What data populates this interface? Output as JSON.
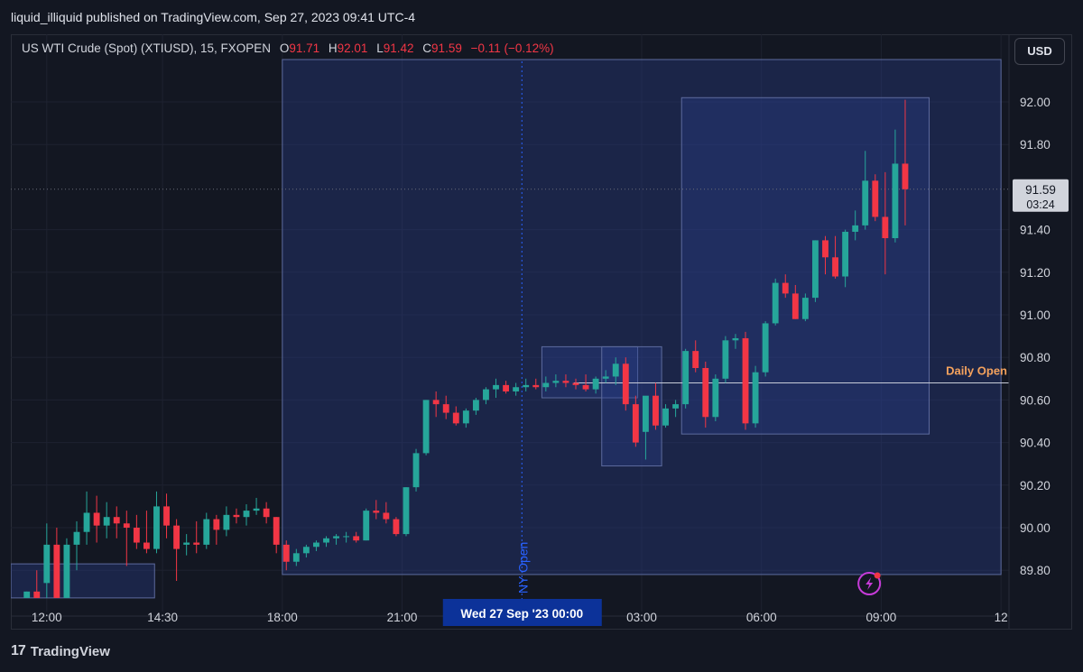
{
  "publisher": "liquid_illiquid published on TradingView.com, Sep 27, 2023 09:41 UTC-4",
  "legend": {
    "symbol": "US WTI Crude (Spot) (XTIUSD), 15, FXOPEN",
    "open_key": "O",
    "open": "91.71",
    "high_key": "H",
    "high": "92.01",
    "low_key": "L",
    "low": "91.42",
    "close_key": "C",
    "close": "91.59",
    "change": "−0.11 (−0.12%)"
  },
  "currency": "USD",
  "brand": "TradingView",
  "colors": {
    "up": "#26a69a",
    "down": "#f23645",
    "box": "#2a3f8f",
    "daily_open": "#f5a25d",
    "ny_open": "#2962ff"
  },
  "chart_data": {
    "type": "candlestick",
    "y_ticks": [
      "92.00",
      "91.80",
      "91.40",
      "91.20",
      "91.00",
      "90.80",
      "90.60",
      "90.40",
      "90.20",
      "90.00",
      "89.80"
    ],
    "ylim": [
      89.67,
      92.22
    ],
    "x_ticks": [
      {
        "label": "12:00",
        "hour": 11.4
      },
      {
        "label": "14:30",
        "hour": 14.3
      },
      {
        "label": "18:00",
        "hour": 17.3
      },
      {
        "label": "21:00",
        "hour": 20.3
      },
      {
        "label": "03:00",
        "hour": 26.3
      },
      {
        "label": "06:00",
        "hour": 29.3
      },
      {
        "label": "09:00",
        "hour": 32.3
      },
      {
        "label": "12",
        "hour": 35.3
      }
    ],
    "x_range": [
      10.5,
      35.5
    ],
    "crosshair_label": "Wed 27 Sep '23   00:00",
    "crosshair_hour": 23.3,
    "last_price": "91.59",
    "countdown": "03:24",
    "daily_open_label": "Daily Open",
    "daily_open_price": 90.68,
    "ny_open_label": "NY Open",
    "candles": [
      {
        "o": 89.67,
        "h": 89.7,
        "l": 89.67,
        "c": 89.7
      },
      {
        "o": 89.7,
        "h": 89.8,
        "l": 89.67,
        "c": 89.67
      },
      {
        "o": 89.74,
        "h": 90.02,
        "l": 89.67,
        "c": 89.92
      },
      {
        "o": 89.92,
        "h": 90.0,
        "l": 89.67,
        "c": 89.67
      },
      {
        "o": 89.67,
        "h": 89.95,
        "l": 89.67,
        "c": 89.92
      },
      {
        "o": 89.92,
        "h": 90.03,
        "l": 89.8,
        "c": 89.98
      },
      {
        "o": 89.98,
        "h": 90.17,
        "l": 89.92,
        "c": 90.07
      },
      {
        "o": 90.07,
        "h": 90.15,
        "l": 89.93,
        "c": 90.01
      },
      {
        "o": 90.01,
        "h": 90.12,
        "l": 89.95,
        "c": 90.05
      },
      {
        "o": 90.05,
        "h": 90.1,
        "l": 89.95,
        "c": 90.02
      },
      {
        "o": 90.02,
        "h": 90.08,
        "l": 89.82,
        "c": 90.0
      },
      {
        "o": 90.0,
        "h": 90.06,
        "l": 89.9,
        "c": 89.93
      },
      {
        "o": 89.93,
        "h": 90.08,
        "l": 89.88,
        "c": 89.9
      },
      {
        "o": 89.9,
        "h": 90.17,
        "l": 89.88,
        "c": 90.1
      },
      {
        "o": 90.1,
        "h": 90.16,
        "l": 89.95,
        "c": 90.01
      },
      {
        "o": 90.01,
        "h": 90.04,
        "l": 89.75,
        "c": 89.9
      },
      {
        "o": 89.92,
        "h": 89.97,
        "l": 89.87,
        "c": 89.93
      },
      {
        "o": 89.93,
        "h": 90.03,
        "l": 89.88,
        "c": 89.92
      },
      {
        "o": 89.92,
        "h": 90.07,
        "l": 89.9,
        "c": 90.04
      },
      {
        "o": 90.04,
        "h": 90.06,
        "l": 89.92,
        "c": 89.99
      },
      {
        "o": 89.99,
        "h": 90.1,
        "l": 89.96,
        "c": 90.06
      },
      {
        "o": 90.06,
        "h": 90.09,
        "l": 90.02,
        "c": 90.05
      },
      {
        "o": 90.05,
        "h": 90.11,
        "l": 90.01,
        "c": 90.08
      },
      {
        "o": 90.08,
        "h": 90.14,
        "l": 90.06,
        "c": 90.09
      },
      {
        "o": 90.09,
        "h": 90.12,
        "l": 90.02,
        "c": 90.05
      },
      {
        "o": 90.05,
        "h": 90.05,
        "l": 89.88,
        "c": 89.92
      },
      {
        "o": 89.92,
        "h": 89.94,
        "l": 89.8,
        "c": 89.84
      },
      {
        "o": 89.84,
        "h": 89.9,
        "l": 89.82,
        "c": 89.88
      },
      {
        "o": 89.88,
        "h": 89.92,
        "l": 89.86,
        "c": 89.91
      },
      {
        "o": 89.91,
        "h": 89.94,
        "l": 89.89,
        "c": 89.93
      },
      {
        "o": 89.93,
        "h": 89.96,
        "l": 89.91,
        "c": 89.95
      },
      {
        "o": 89.95,
        "h": 89.97,
        "l": 89.92,
        "c": 89.96
      },
      {
        "o": 89.96,
        "h": 89.98,
        "l": 89.93,
        "c": 89.96
      },
      {
        "o": 89.96,
        "h": 89.98,
        "l": 89.93,
        "c": 89.94
      },
      {
        "o": 89.94,
        "h": 90.09,
        "l": 89.94,
        "c": 90.08
      },
      {
        "o": 90.08,
        "h": 90.13,
        "l": 90.04,
        "c": 90.07
      },
      {
        "o": 90.07,
        "h": 90.12,
        "l": 90.02,
        "c": 90.04
      },
      {
        "o": 90.04,
        "h": 90.05,
        "l": 89.96,
        "c": 89.97
      },
      {
        "o": 89.97,
        "h": 90.19,
        "l": 89.96,
        "c": 90.19
      },
      {
        "o": 90.19,
        "h": 90.37,
        "l": 90.17,
        "c": 90.35
      },
      {
        "o": 90.35,
        "h": 90.6,
        "l": 90.34,
        "c": 90.6
      },
      {
        "o": 90.6,
        "h": 90.64,
        "l": 90.52,
        "c": 90.58
      },
      {
        "o": 90.58,
        "h": 90.62,
        "l": 90.51,
        "c": 90.54
      },
      {
        "o": 90.54,
        "h": 90.57,
        "l": 90.48,
        "c": 90.49
      },
      {
        "o": 90.49,
        "h": 90.56,
        "l": 90.47,
        "c": 90.55
      },
      {
        "o": 90.55,
        "h": 90.61,
        "l": 90.53,
        "c": 90.6
      },
      {
        "o": 90.6,
        "h": 90.66,
        "l": 90.58,
        "c": 90.65
      },
      {
        "o": 90.65,
        "h": 90.7,
        "l": 90.61,
        "c": 90.67
      },
      {
        "o": 90.67,
        "h": 90.69,
        "l": 90.63,
        "c": 90.64
      },
      {
        "o": 90.64,
        "h": 90.68,
        "l": 90.62,
        "c": 90.66
      },
      {
        "o": 90.66,
        "h": 90.7,
        "l": 90.64,
        "c": 90.67
      },
      {
        "o": 90.67,
        "h": 90.7,
        "l": 90.65,
        "c": 90.66
      },
      {
        "o": 90.66,
        "h": 90.71,
        "l": 90.64,
        "c": 90.68
      },
      {
        "o": 90.68,
        "h": 90.72,
        "l": 90.66,
        "c": 90.69
      },
      {
        "o": 90.69,
        "h": 90.72,
        "l": 90.66,
        "c": 90.68
      },
      {
        "o": 90.68,
        "h": 90.7,
        "l": 90.65,
        "c": 90.67
      },
      {
        "o": 90.67,
        "h": 90.72,
        "l": 90.64,
        "c": 90.65
      },
      {
        "o": 90.65,
        "h": 90.71,
        "l": 90.63,
        "c": 90.7
      },
      {
        "o": 90.7,
        "h": 90.74,
        "l": 90.68,
        "c": 90.71
      },
      {
        "o": 90.71,
        "h": 90.8,
        "l": 90.67,
        "c": 90.77
      },
      {
        "o": 90.77,
        "h": 90.8,
        "l": 90.55,
        "c": 90.58
      },
      {
        "o": 90.58,
        "h": 90.62,
        "l": 90.38,
        "c": 90.4
      },
      {
        "o": 90.45,
        "h": 90.6,
        "l": 90.32,
        "c": 90.62
      },
      {
        "o": 90.62,
        "h": 90.68,
        "l": 90.46,
        "c": 90.48
      },
      {
        "o": 90.48,
        "h": 90.58,
        "l": 90.47,
        "c": 90.56
      },
      {
        "o": 90.56,
        "h": 90.6,
        "l": 90.52,
        "c": 90.58
      },
      {
        "o": 90.58,
        "h": 90.84,
        "l": 90.56,
        "c": 90.83
      },
      {
        "o": 90.83,
        "h": 90.88,
        "l": 90.73,
        "c": 90.75
      },
      {
        "o": 90.75,
        "h": 90.78,
        "l": 90.47,
        "c": 90.52
      },
      {
        "o": 90.52,
        "h": 90.72,
        "l": 90.5,
        "c": 90.7
      },
      {
        "o": 90.7,
        "h": 90.9,
        "l": 90.68,
        "c": 90.88
      },
      {
        "o": 90.88,
        "h": 90.91,
        "l": 90.84,
        "c": 90.89
      },
      {
        "o": 90.89,
        "h": 90.92,
        "l": 90.46,
        "c": 90.49
      },
      {
        "o": 90.49,
        "h": 90.76,
        "l": 90.47,
        "c": 90.73
      },
      {
        "o": 90.73,
        "h": 90.97,
        "l": 90.71,
        "c": 90.96
      },
      {
        "o": 90.96,
        "h": 91.17,
        "l": 90.95,
        "c": 91.15
      },
      {
        "o": 91.15,
        "h": 91.19,
        "l": 91.08,
        "c": 91.1
      },
      {
        "o": 91.1,
        "h": 91.14,
        "l": 90.98,
        "c": 90.98
      },
      {
        "o": 90.98,
        "h": 91.1,
        "l": 90.97,
        "c": 91.08
      },
      {
        "o": 91.08,
        "h": 91.35,
        "l": 91.06,
        "c": 91.35
      },
      {
        "o": 91.35,
        "h": 91.37,
        "l": 91.19,
        "c": 91.27
      },
      {
        "o": 91.27,
        "h": 91.37,
        "l": 91.17,
        "c": 91.18
      },
      {
        "o": 91.18,
        "h": 91.4,
        "l": 91.13,
        "c": 91.39
      },
      {
        "o": 91.39,
        "h": 91.49,
        "l": 91.35,
        "c": 91.42
      },
      {
        "o": 91.42,
        "h": 91.77,
        "l": 91.4,
        "c": 91.63
      },
      {
        "o": 91.63,
        "h": 91.66,
        "l": 91.44,
        "c": 91.46
      },
      {
        "o": 91.46,
        "h": 91.67,
        "l": 91.19,
        "c": 91.36
      },
      {
        "o": 91.36,
        "h": 91.87,
        "l": 91.34,
        "c": 91.71
      },
      {
        "o": 91.71,
        "h": 92.01,
        "l": 91.42,
        "c": 91.59
      }
    ],
    "first_candle_hour": 10.9,
    "candle_step_hours": 0.25,
    "session_boxes": [
      {
        "h1": 17.3,
        "h2": 35.3,
        "p1": 89.78,
        "p2": 92.4
      },
      {
        "h1": 10.5,
        "h2": 14.1,
        "p1": 89.67,
        "p2": 89.83
      },
      {
        "h1": 23.8,
        "h2": 26.2,
        "p1": 90.61,
        "p2": 90.85
      },
      {
        "h1": 25.3,
        "h2": 26.8,
        "p1": 90.29,
        "p2": 90.85
      },
      {
        "h1": 27.3,
        "h2": 33.5,
        "p1": 90.44,
        "p2": 92.02
      }
    ]
  }
}
